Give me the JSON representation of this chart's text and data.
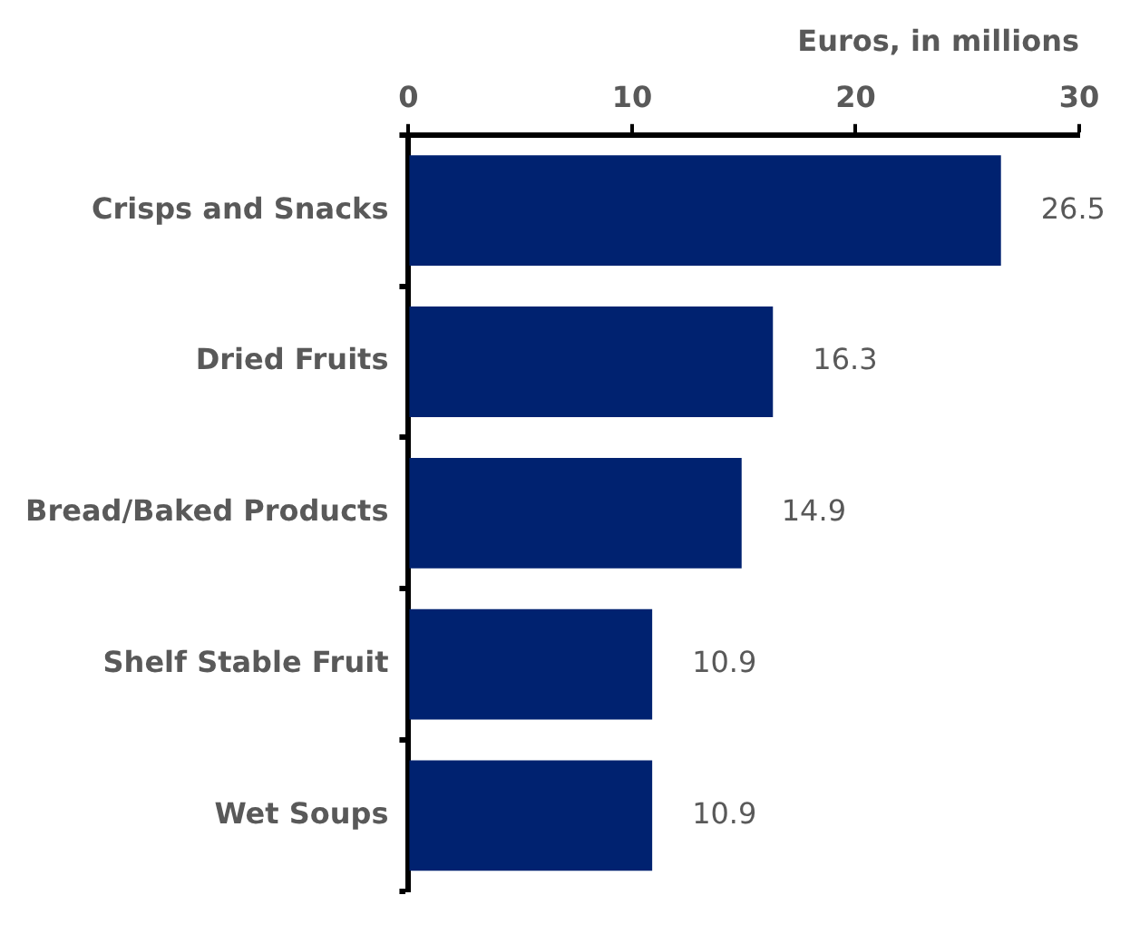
{
  "chart_data": {
    "type": "bar",
    "orientation": "horizontal",
    "xlabel": "Euros, in millions",
    "categories": [
      "Crisps and Snacks",
      "Dried Fruits",
      "Bread/Baked Products",
      "Shelf Stable Fruit",
      "Wet Soups"
    ],
    "values": [
      26.5,
      16.3,
      14.9,
      10.9,
      10.9
    ],
    "color": "#002270",
    "xlim": [
      0,
      30
    ],
    "xticks": [
      0,
      10,
      20,
      30
    ],
    "grid": false,
    "legend": false,
    "data_labels": true
  }
}
